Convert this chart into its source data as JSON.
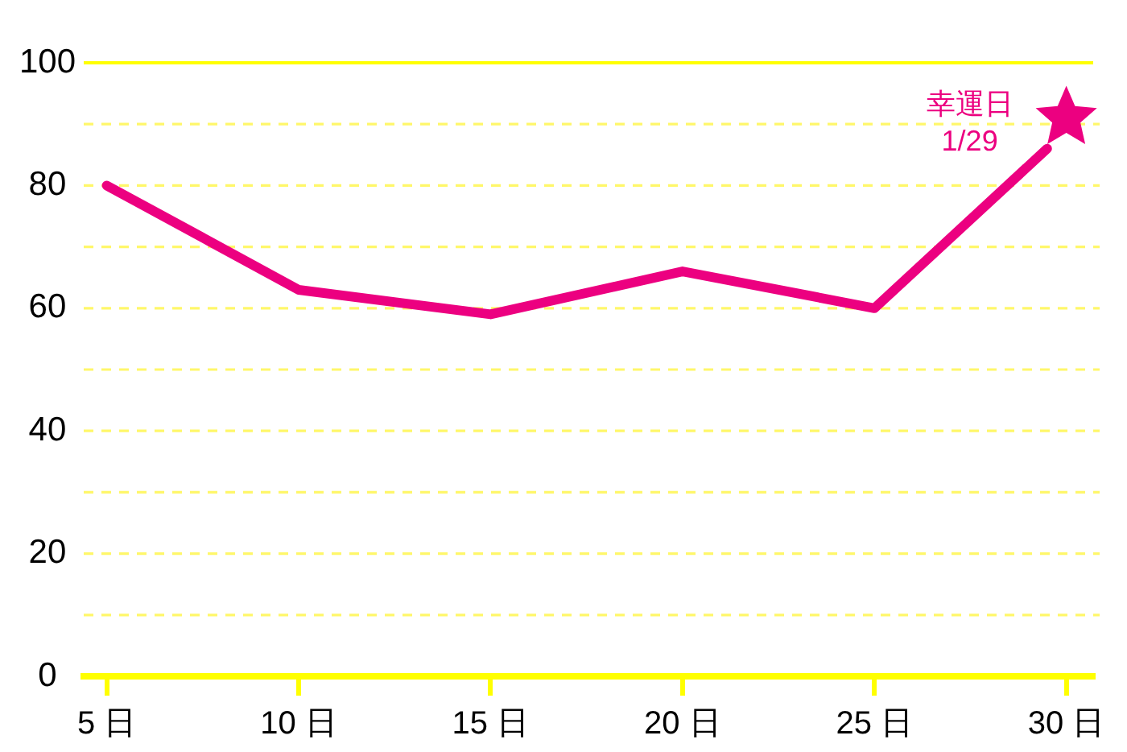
{
  "chart_data": {
    "type": "line",
    "x": [
      5,
      10,
      15,
      20,
      25,
      29.5
    ],
    "xlim": [
      4.4,
      30.7
    ],
    "xticks": [
      {
        "value": 5,
        "label": "5 日"
      },
      {
        "value": 10,
        "label": "10 日"
      },
      {
        "value": 15,
        "label": "15 日"
      },
      {
        "value": 20,
        "label": "20 日"
      },
      {
        "value": 25,
        "label": "25 日"
      },
      {
        "value": 30,
        "label": "30 日"
      }
    ],
    "ylim": [
      0,
      100
    ],
    "yticks": [
      0,
      {
        "value": 10,
        "label": null
      },
      20,
      {
        "value": 30,
        "label": null
      },
      40,
      {
        "value": 50,
        "label": null
      },
      60,
      {
        "value": 70,
        "label": null
      },
      80,
      {
        "value": 90,
        "label": null
      },
      100
    ],
    "series": [
      {
        "type": "line",
        "color": "#ec0080",
        "values": [
          80,
          63,
          59,
          66,
          60,
          86
        ]
      },
      {
        "type": "scatter",
        "color": "#ec0080",
        "x": [
          30
        ],
        "values": [
          91
        ],
        "marker": "star"
      }
    ],
    "marker": "none",
    "grid": "y",
    "annotations": [
      {
        "text": "幸運日\n1/29",
        "x": 30,
        "y": 91
      }
    ]
  }
}
